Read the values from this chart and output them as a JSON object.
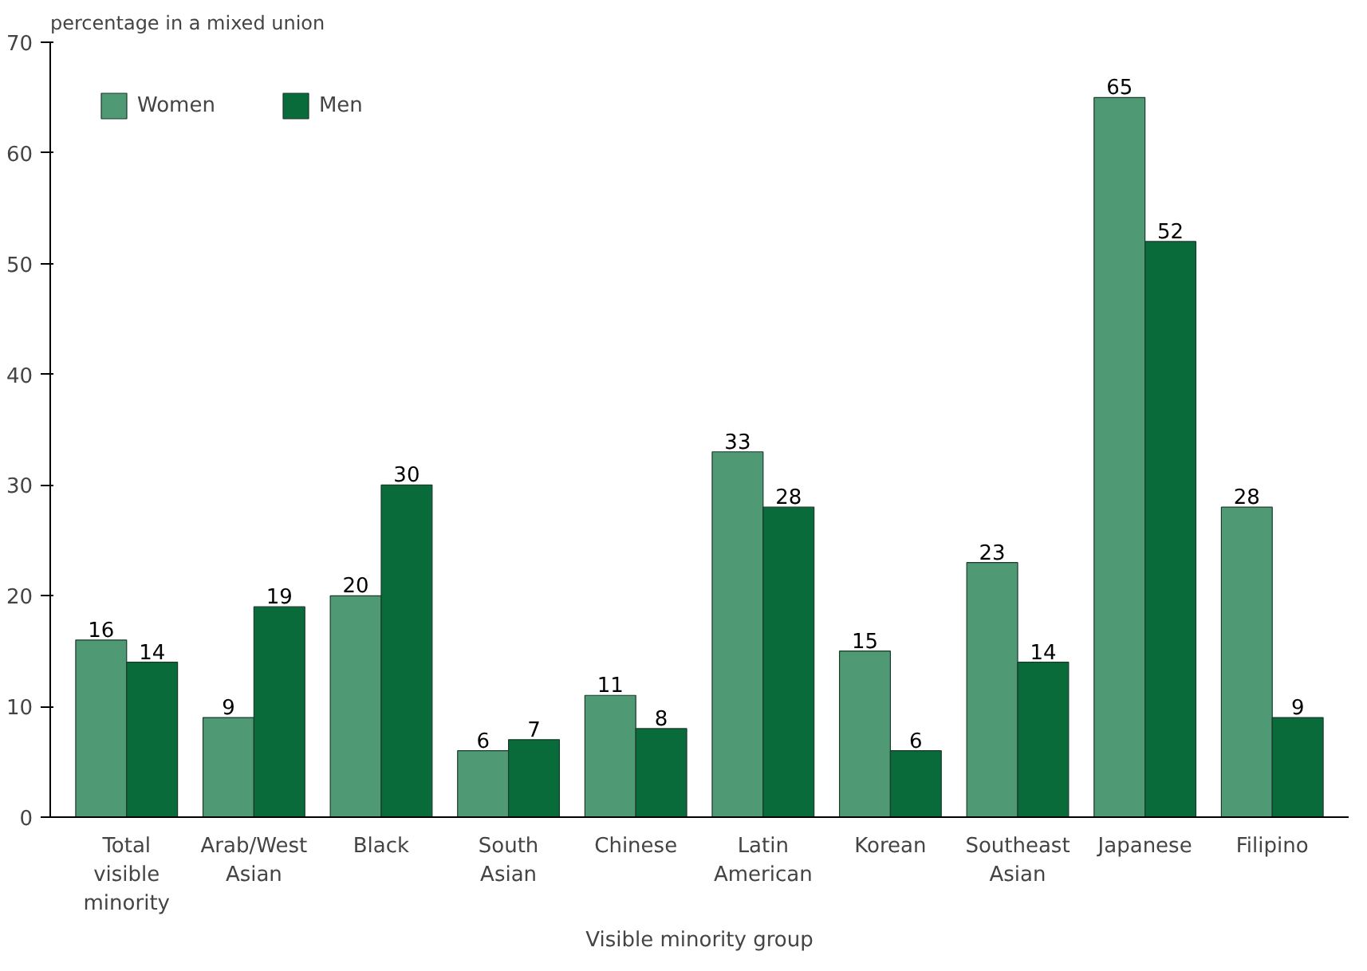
{
  "chart_data": {
    "type": "bar",
    "ylabel": "percentage in a mixed union",
    "xlabel": "Visible minority group",
    "categories": [
      "Total visible minority",
      "Arab/West Asian",
      "Black",
      "South Asian",
      "Chinese",
      "Latin American",
      "Korean",
      "Southeast Asian",
      "Japanese",
      "Filipino"
    ],
    "series": [
      {
        "name": "Women",
        "color": "#4f9a74",
        "values": [
          16,
          9,
          20,
          6,
          11,
          33,
          15,
          23,
          65,
          28
        ]
      },
      {
        "name": "Men",
        "color": "#0a6b3a",
        "values": [
          14,
          19,
          30,
          7,
          8,
          28,
          6,
          14,
          52,
          9
        ]
      }
    ],
    "ylim": [
      0,
      70
    ],
    "yticks": [
      0,
      10,
      20,
      30,
      40,
      50,
      60,
      70
    ],
    "data_labels": true,
    "grid": false,
    "legend": "top left"
  }
}
